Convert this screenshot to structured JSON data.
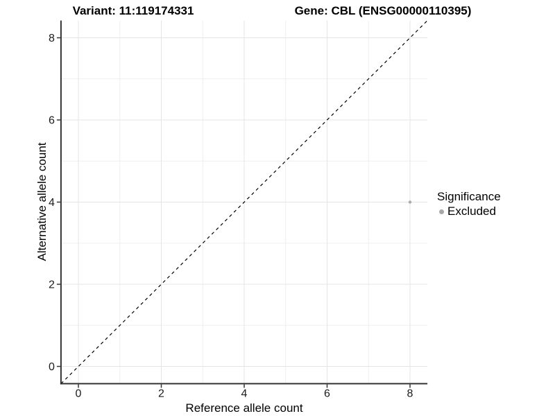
{
  "titles": {
    "variant": "Variant: 11:119174331",
    "gene": "Gene: CBL (ENSG00000110395)"
  },
  "axes": {
    "x": {
      "label": "Reference allele count"
    },
    "y": {
      "label": "Alternative allele count"
    }
  },
  "legend": {
    "title": "Significance",
    "items": [
      {
        "label": "Excluded",
        "color": "#a8a8a8"
      }
    ]
  },
  "colors": {
    "background": "#ffffff",
    "axis_line": "#333333",
    "tick_text": "#1a1a1a",
    "grid_major": "#e4e4e4",
    "grid_minor": "#efefef",
    "reference_line": "#000000",
    "point": "#ababab"
  },
  "chart_data": {
    "type": "scatter",
    "title": "Variant: 11:119174331 | Gene: CBL (ENSG00000110395)",
    "xlabel": "Reference allele count",
    "ylabel": "Alternative allele count",
    "xlim": [
      -0.42,
      8.42
    ],
    "ylim": [
      -0.42,
      8.42
    ],
    "x_ticks": [
      0,
      2,
      4,
      6,
      8
    ],
    "y_ticks": [
      0,
      2,
      4,
      6,
      8
    ],
    "grid": true,
    "minor_grid": true,
    "legend_position": "right",
    "series": [
      {
        "name": "Excluded",
        "color": "#ababab",
        "marker_size": 2.2,
        "points": [
          {
            "x": 8,
            "y": 4
          }
        ]
      }
    ],
    "reference_line": {
      "kind": "identity",
      "slope": 1,
      "intercept": 0,
      "style": "dashed",
      "color": "#000000"
    }
  }
}
